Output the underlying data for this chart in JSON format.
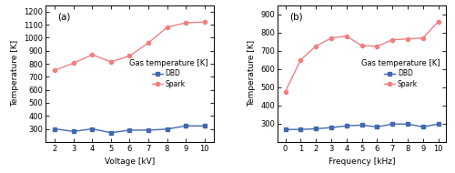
{
  "panel_a": {
    "voltage": [
      2,
      3,
      4,
      5,
      6,
      7,
      8,
      9,
      10
    ],
    "dbd": [
      300,
      280,
      300,
      270,
      290,
      290,
      298,
      323,
      322
    ],
    "spark": [
      750,
      805,
      870,
      815,
      860,
      960,
      1080,
      1115,
      1120
    ],
    "xlabel": "Voltage [kV]",
    "ylabel": "Temperature [K]",
    "xlim": [
      1.5,
      10.5
    ],
    "ylim": [
      200,
      1250
    ],
    "yticks": [
      300,
      400,
      500,
      600,
      700,
      800,
      900,
      1000,
      1100,
      1200
    ],
    "xticks": [
      2,
      3,
      4,
      5,
      6,
      7,
      8,
      9,
      10
    ],
    "label": "(a)"
  },
  "panel_b": {
    "frequency": [
      0,
      1,
      2,
      3,
      4,
      5,
      6,
      7,
      8,
      9,
      10
    ],
    "dbd": [
      268,
      268,
      272,
      278,
      288,
      292,
      282,
      298,
      298,
      282,
      298
    ],
    "spark": [
      475,
      650,
      725,
      770,
      780,
      728,
      725,
      760,
      765,
      770,
      860
    ],
    "xlabel": "Frequency [kHz]",
    "ylabel": "Temperature [K]",
    "xlim": [
      -0.5,
      10.5
    ],
    "ylim": [
      200,
      950
    ],
    "yticks": [
      300,
      400,
      500,
      600,
      700,
      800,
      900
    ],
    "xticks": [
      0,
      1,
      2,
      3,
      4,
      5,
      6,
      7,
      8,
      9,
      10
    ],
    "label": "(b)"
  },
  "dbd_color": "#4169b0",
  "spark_color": "#f08080",
  "legend_title": "Gas temperature [K]",
  "dbd_label": "DBD",
  "spark_label": "Spark",
  "marker_dbd": "s",
  "marker_spark": "o",
  "linewidth": 1.0,
  "markersize": 3.0,
  "background_color": "#ffffff"
}
